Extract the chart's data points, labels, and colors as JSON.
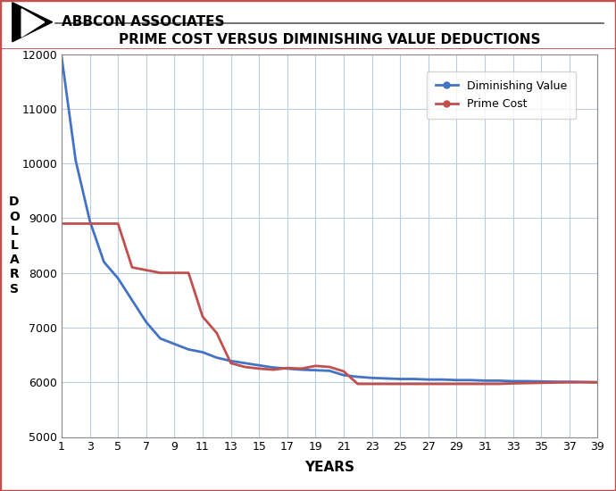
{
  "title": "PRIME COST VERSUS DIMINISHING VALUE DEDUCTIONS",
  "header_text": "ABBCON ASSOCIATES",
  "xlabel": "YEARS",
  "ylabel": "D\nO\nL\nL\nA\nR\nS",
  "ylim": [
    5000,
    12000
  ],
  "yticks": [
    5000,
    6000,
    7000,
    8000,
    9000,
    10000,
    11000,
    12000
  ],
  "xticks": [
    1,
    3,
    5,
    7,
    9,
    11,
    13,
    15,
    17,
    19,
    21,
    23,
    25,
    27,
    29,
    31,
    33,
    35,
    37,
    39
  ],
  "xlim": [
    1,
    39
  ],
  "dv_x": [
    1,
    2,
    3,
    4,
    5,
    6,
    7,
    8,
    9,
    10,
    11,
    12,
    13,
    14,
    15,
    16,
    17,
    18,
    19,
    20,
    21,
    22,
    23,
    24,
    25,
    26,
    27,
    28,
    29,
    30,
    31,
    32,
    33,
    34,
    35,
    36,
    37,
    38,
    39
  ],
  "dv_y": [
    11950,
    10050,
    8950,
    8200,
    7900,
    7500,
    7100,
    6800,
    6700,
    6600,
    6550,
    6450,
    6390,
    6350,
    6310,
    6270,
    6250,
    6230,
    6220,
    6210,
    6130,
    6100,
    6080,
    6070,
    6060,
    6060,
    6050,
    6050,
    6040,
    6040,
    6030,
    6030,
    6020,
    6020,
    6015,
    6010,
    6010,
    6005,
    6000
  ],
  "pc_x": [
    1,
    2,
    3,
    4,
    5,
    6,
    7,
    8,
    9,
    10,
    11,
    12,
    13,
    14,
    15,
    16,
    17,
    18,
    19,
    20,
    21,
    22,
    23,
    24,
    25,
    26,
    27,
    28,
    29,
    30,
    31,
    32,
    33,
    34,
    35,
    36,
    37,
    38,
    39
  ],
  "pc_y": [
    8900,
    8900,
    8900,
    8900,
    8900,
    8100,
    8050,
    8000,
    8000,
    8000,
    7200,
    6900,
    6350,
    6280,
    6250,
    6230,
    6260,
    6250,
    6300,
    6280,
    6200,
    5970,
    5970,
    5970,
    5970,
    5970,
    5970,
    5970,
    5970,
    5970,
    5970,
    5970,
    5980,
    5985,
    5990,
    5995,
    5998,
    6000,
    6000
  ],
  "dv_color": "#4472c4",
  "pc_color": "#c0504d",
  "line_width": 2.0,
  "bg_color": "#ffffff",
  "plot_bg_color": "#ffffff",
  "grid_color": "#b8cce4",
  "border_color": "#c0504d",
  "header_line_color": "#595959",
  "legend_labels": [
    "Diminishing Value",
    "Prime Cost"
  ],
  "legend_colors": [
    "#4472c4",
    "#c0504d"
  ]
}
